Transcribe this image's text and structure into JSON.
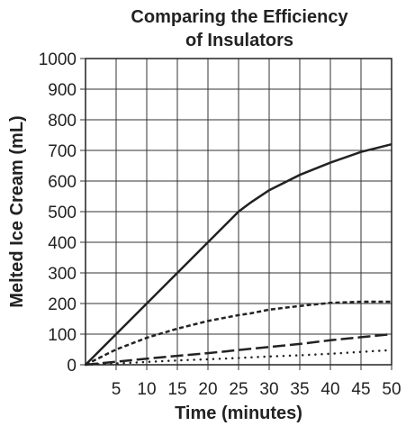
{
  "chart_data": {
    "type": "line",
    "title": [
      "Comparing the Efficiency",
      "of Insulators"
    ],
    "xlabel": "Time (minutes)",
    "ylabel": "Melted Ice Cream (mL)",
    "xlim": [
      0,
      50
    ],
    "ylim": [
      0,
      1000
    ],
    "grid": true,
    "x_ticks": [
      5,
      10,
      15,
      20,
      25,
      30,
      35,
      40,
      45,
      50
    ],
    "y_ticks": [
      0,
      100,
      200,
      300,
      400,
      500,
      600,
      700,
      800,
      900,
      1000
    ],
    "x": [
      0,
      5,
      10,
      15,
      20,
      25,
      27,
      30,
      35,
      40,
      45,
      50
    ],
    "series": [
      {
        "style": "solid",
        "values": [
          0,
          100,
          200,
          300,
          400,
          500,
          530,
          570,
          620,
          660,
          695,
          720
        ]
      },
      {
        "style": "dashed",
        "values": [
          0,
          50,
          88,
          118,
          143,
          162,
          168,
          180,
          192,
          202,
          206,
          206
        ]
      },
      {
        "style": "longdash",
        "values": [
          0,
          10,
          20,
          29,
          38,
          48,
          52,
          58,
          68,
          80,
          90,
          100
        ]
      },
      {
        "style": "dotted",
        "values": [
          0,
          4,
          9,
          14,
          18,
          22,
          24,
          27,
          31,
          36,
          42,
          48
        ]
      }
    ]
  }
}
